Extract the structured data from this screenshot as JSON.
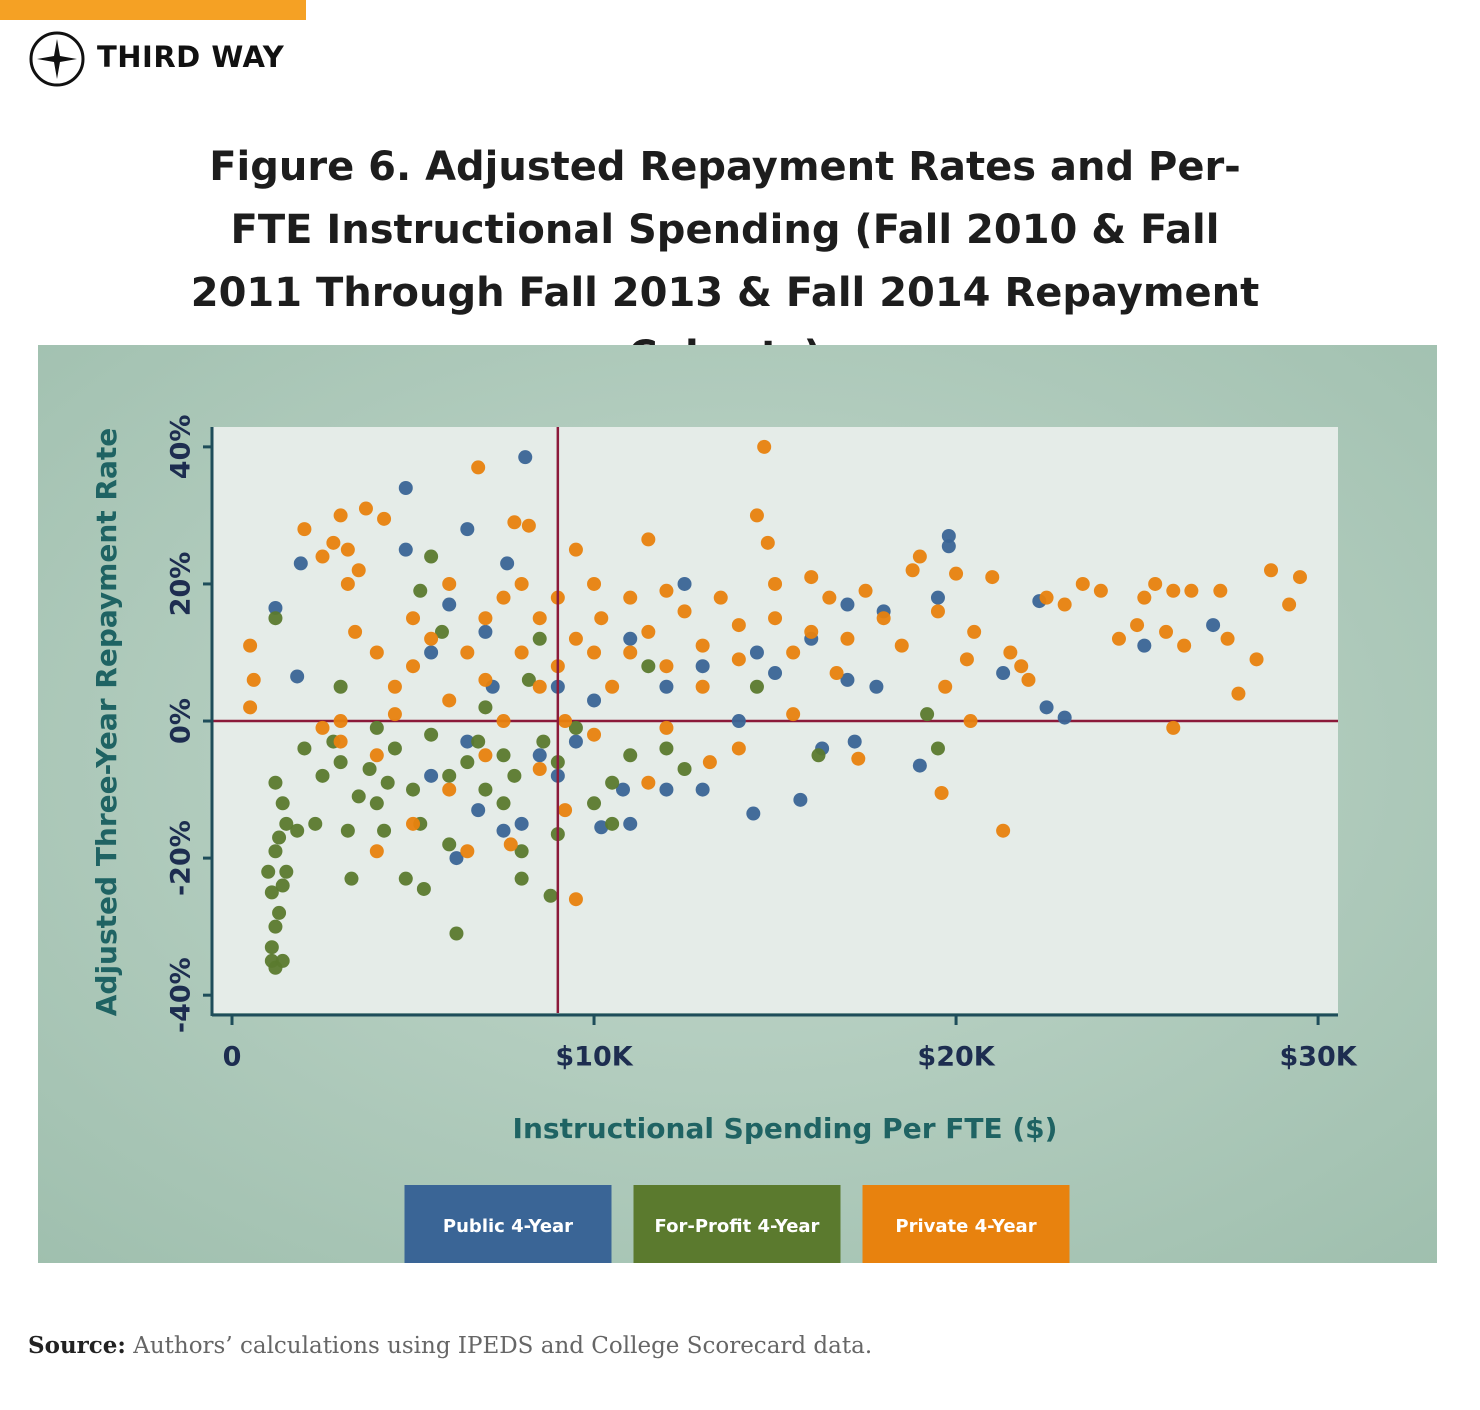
{
  "brand": "THIRD WAY",
  "chart_data": {
    "type": "scatter",
    "title": "Figure 6. Adjusted Repayment Rates and Per-FTE Instructional Spending (Fall 2010 & Fall 2011 Through Fall 2013 & Fall 2014 Repayment Cohorts)",
    "x_label": "Instructional Spending Per FTE ($)",
    "y_label": "Adjusted Three-Year Repayment Rate",
    "xlim": [
      -525,
      30550
    ],
    "ylim": [
      -42.6,
      42.9
    ],
    "xticks": [
      0,
      {
        "value": 10000,
        "label": "$10K"
      },
      {
        "value": 20000,
        "label": "$20K"
      },
      {
        "value": 30000,
        "label": "$30K"
      }
    ],
    "yticks": [
      {
        "value": -40,
        "label": "-40%"
      },
      {
        "value": -20,
        "label": "-20%"
      },
      {
        "value": 0,
        "label": "0%"
      },
      {
        "value": 20,
        "label": "20%"
      },
      {
        "value": 40,
        "label": "40%"
      }
    ],
    "reference_lines": {
      "x": 9000,
      "y": 0,
      "color": "#8b1a3a"
    },
    "series": [
      {
        "name": "Public 4-Year",
        "color": "#3a6596",
        "x": [
          1200,
          1800,
          1900,
          4800,
          4800,
          6500,
          8100,
          7600,
          7000,
          5500,
          6000,
          7200,
          6500,
          5500,
          6200,
          6800,
          7500,
          8000,
          9500,
          10200,
          10800,
          11000,
          11000,
          12000,
          12500,
          13000,
          14000,
          14400,
          14500,
          15000,
          15700,
          16300,
          17000,
          17200,
          17800,
          18000,
          19000,
          19800,
          19800,
          19500,
          21300,
          22300,
          22500,
          23000,
          25200,
          27100,
          9000,
          10000,
          8500,
          9000,
          12000,
          13000,
          16000,
          17000
        ],
        "values": [
          16.5,
          6.5,
          23,
          34,
          25,
          28,
          38.5,
          23,
          13,
          10,
          17,
          5,
          -3,
          -8,
          -20,
          -13,
          -16,
          -15,
          -3,
          -15.5,
          -10,
          -15,
          12,
          -10,
          20,
          -10,
          0,
          -13.5,
          10,
          7,
          -11.5,
          -4,
          17,
          -3,
          5,
          16,
          -6.5,
          27,
          25.5,
          18,
          7,
          17.5,
          2,
          0.5,
          11,
          14,
          5,
          3,
          -5,
          -8,
          5,
          8,
          12,
          6
        ]
      },
      {
        "name": "For-Profit 4-Year",
        "color": "#5b7a2e",
        "x": [
          1000,
          1100,
          1200,
          1100,
          1200,
          1300,
          1400,
          1500,
          1200,
          1300,
          1100,
          1400,
          1200,
          1400,
          1500,
          1200,
          1800,
          2000,
          2300,
          2500,
          3000,
          3000,
          3200,
          3300,
          3500,
          4000,
          4000,
          4200,
          4500,
          4800,
          5000,
          5200,
          5300,
          5500,
          5200,
          5500,
          5800,
          6000,
          6200,
          6000,
          6500,
          7000,
          7000,
          7500,
          7500,
          7800,
          8000,
          8000,
          8200,
          8500,
          8600,
          8800,
          9000,
          9000,
          9500,
          10000,
          10500,
          10500,
          11000,
          11500,
          12000,
          12500,
          14500,
          16200,
          19200,
          19500,
          3800,
          4300,
          2800,
          6800
        ],
        "values": [
          -22,
          -25,
          -30,
          -35,
          -36,
          -28,
          -24,
          -22,
          -19,
          -17,
          -33,
          -35,
          -9,
          -12,
          -15,
          15,
          -16,
          -4,
          -15,
          -8,
          -6,
          5,
          -16,
          -23,
          -11,
          -1,
          -12,
          -16,
          -4,
          -23,
          -10,
          -15,
          -24.5,
          24,
          19,
          -2,
          13,
          -18,
          -31,
          -8,
          -6,
          -10,
          2,
          -5,
          -12,
          -8,
          -23,
          -19,
          6,
          12,
          -3,
          -25.5,
          -16.5,
          -6,
          -1,
          -12,
          -9,
          -15,
          -5,
          8,
          -4,
          -7,
          5,
          -5,
          1,
          -4,
          -7,
          -9,
          -3,
          -3
        ]
      },
      {
        "name": "Private 4-Year",
        "color": "#e8820e",
        "x": [
          500,
          500,
          600,
          2000,
          2500,
          2800,
          3000,
          3200,
          3500,
          3700,
          4200,
          3200,
          3400,
          4000,
          4500,
          5000,
          5000,
          5500,
          6000,
          6000,
          6500,
          6800,
          7000,
          7000,
          7500,
          7500,
          7800,
          8000,
          8000,
          8200,
          8500,
          8500,
          9000,
          9000,
          9200,
          9500,
          9500,
          10000,
          10000,
          10200,
          10500,
          11000,
          11000,
          11500,
          11500,
          12000,
          12000,
          12500,
          13000,
          13000,
          13500,
          14000,
          14000,
          14500,
          14700,
          14800,
          15000,
          15000,
          15500,
          16000,
          16000,
          16500,
          16700,
          17000,
          17500,
          18000,
          18500,
          18800,
          19000,
          19500,
          19700,
          20000,
          20300,
          20500,
          21000,
          21500,
          21800,
          22000,
          22500,
          23000,
          23500,
          24000,
          24500,
          25000,
          25200,
          25500,
          25800,
          26000,
          26300,
          26500,
          27300,
          27500,
          27800,
          28300,
          28700,
          29200,
          29500,
          26000,
          21300,
          20400,
          19600,
          17300,
          15500,
          13200,
          11500,
          9500,
          9200,
          8500,
          7700,
          6500,
          5000,
          4000,
          4000,
          3000,
          3000,
          6000,
          7000,
          10000,
          12000,
          14000,
          2500,
          4500
        ],
        "values": [
          2,
          11,
          6,
          28,
          24,
          26,
          30,
          25,
          22,
          31,
          29.5,
          20,
          13,
          10,
          5,
          15,
          8,
          12,
          20,
          3,
          10,
          37,
          15,
          6,
          18,
          0,
          29,
          10,
          20,
          28.5,
          15,
          5,
          18,
          8,
          0,
          25,
          12,
          20,
          10,
          15,
          5,
          18,
          10,
          26.5,
          13,
          8,
          19,
          16,
          11,
          5,
          18,
          14,
          9,
          30,
          40,
          26,
          15,
          20,
          10,
          21,
          13,
          18,
          7,
          12,
          19,
          15,
          11,
          22,
          24,
          16,
          5,
          21.5,
          9,
          13,
          21,
          10,
          8,
          6,
          18,
          17,
          20,
          19,
          12,
          14,
          18,
          20,
          13,
          19,
          11,
          19,
          19,
          12,
          4,
          9,
          22,
          17,
          21,
          -1,
          -16,
          0,
          -10.5,
          -5.5,
          1,
          -6,
          -9,
          -26,
          -13,
          -7,
          -18,
          -19,
          -15,
          -19,
          -5,
          -3,
          0,
          -10,
          -5,
          -2,
          -1,
          -4,
          -1,
          1
        ]
      }
    ],
    "legend": "bottom"
  },
  "source_label": "Source:",
  "source_text": "Authors’ calculations using IPEDS and College Scorecard data."
}
